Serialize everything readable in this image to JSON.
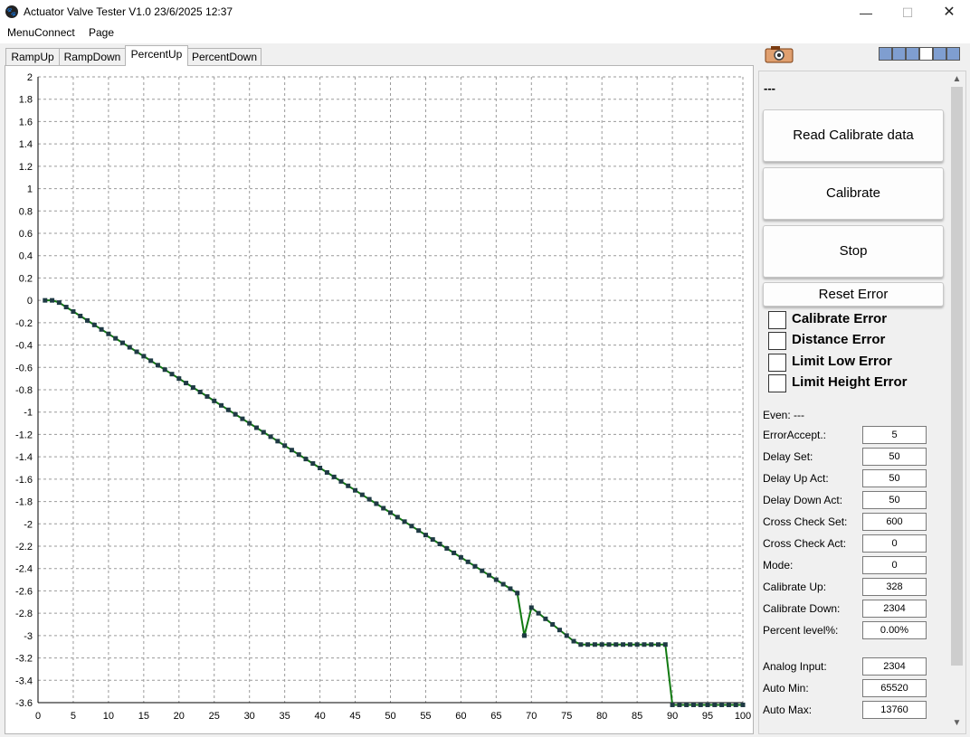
{
  "window": {
    "title": "Actuator Valve Tester V1.0 23/6/2025 12:37",
    "controls": {
      "minimize": "—",
      "maximize": "☐",
      "close": "✕"
    }
  },
  "menu": [
    "MenuConnect",
    "Page"
  ],
  "tabs": [
    {
      "label": "RampUp",
      "active": false
    },
    {
      "label": "RampDown",
      "active": false
    },
    {
      "label": "PercentUp",
      "active": true
    },
    {
      "label": "PercentDown",
      "active": false
    }
  ],
  "indicators": [
    "blue",
    "blue",
    "blue",
    "white",
    "blue",
    "blue"
  ],
  "status_text": "---",
  "buttons": {
    "read_calibrate": "Read Calibrate data",
    "calibrate": "Calibrate",
    "stop": "Stop",
    "reset_error": "Reset Error"
  },
  "errors": [
    {
      "label": "Calibrate Error",
      "checked": false
    },
    {
      "label": "Distance Error",
      "checked": false
    },
    {
      "label": "Limit Low Error",
      "checked": false
    },
    {
      "label": "Limit Height Error",
      "checked": false
    }
  ],
  "even": "Even: ---",
  "fields": [
    {
      "label": "ErrorAccept.:",
      "value": "5"
    },
    {
      "label": "Delay Set:",
      "value": "50"
    },
    {
      "label": "Delay Up Act:",
      "value": "50"
    },
    {
      "label": "Delay Down Act:",
      "value": "50"
    },
    {
      "label": "Cross Check Set:",
      "value": "600"
    },
    {
      "label": "Cross Check Act:",
      "value": "0"
    },
    {
      "label": "Mode:",
      "value": "0"
    },
    {
      "label": "Calibrate Up:",
      "value": "328"
    },
    {
      "label": "Calibrate Down:",
      "value": "2304"
    },
    {
      "label": "Percent level%:",
      "value": "0.00%"
    },
    {
      "label": "Analog Input:",
      "value": "2304"
    },
    {
      "label": "Auto Min:",
      "value": "65520"
    },
    {
      "label": "Auto Max:",
      "value": "13760"
    }
  ],
  "colors": {
    "line": "#117a11",
    "marker": "#1f3a44",
    "grid": "#9a9a9a",
    "indicator_blue": "#7f9ed0"
  },
  "chart_data": {
    "type": "line",
    "xlim": [
      0,
      100
    ],
    "ylim": [
      -3.6,
      2
    ],
    "x_ticks": [
      0,
      5,
      10,
      15,
      20,
      25,
      30,
      35,
      40,
      45,
      50,
      55,
      60,
      65,
      70,
      75,
      80,
      85,
      90,
      95,
      100
    ],
    "y_ticks": [
      2,
      1.8,
      1.6,
      1.4,
      1.2,
      1,
      0.8,
      0.6,
      0.4,
      0.2,
      0,
      -0.2,
      -0.4,
      -0.6,
      -0.8,
      -1,
      -1.2,
      -1.4,
      -1.6,
      -1.8,
      -2,
      -2.2,
      -2.4,
      -2.6,
      -2.8,
      -3,
      -3.2,
      -3.4,
      -3.6
    ],
    "x": [
      1,
      2,
      3,
      4,
      5,
      6,
      7,
      8,
      9,
      10,
      11,
      12,
      13,
      14,
      15,
      16,
      17,
      18,
      19,
      20,
      21,
      22,
      23,
      24,
      25,
      26,
      27,
      28,
      29,
      30,
      31,
      32,
      33,
      34,
      35,
      36,
      37,
      38,
      39,
      40,
      41,
      42,
      43,
      44,
      45,
      46,
      47,
      48,
      49,
      50,
      51,
      52,
      53,
      54,
      55,
      56,
      57,
      58,
      59,
      60,
      61,
      62,
      63,
      64,
      65,
      66,
      67,
      68,
      69,
      70,
      71,
      72,
      73,
      74,
      75,
      76,
      77,
      78,
      79,
      80,
      81,
      82,
      83,
      84,
      85,
      86,
      87,
      88,
      89,
      90,
      91,
      92,
      93,
      94,
      95,
      96,
      97,
      98,
      99,
      100
    ],
    "y": [
      0,
      0,
      -0.02,
      -0.06,
      -0.1,
      -0.14,
      -0.18,
      -0.22,
      -0.26,
      -0.3,
      -0.34,
      -0.38,
      -0.42,
      -0.46,
      -0.5,
      -0.54,
      -0.58,
      -0.62,
      -0.66,
      -0.7,
      -0.74,
      -0.78,
      -0.82,
      -0.86,
      -0.9,
      -0.94,
      -0.98,
      -1.02,
      -1.06,
      -1.1,
      -1.14,
      -1.18,
      -1.22,
      -1.26,
      -1.3,
      -1.34,
      -1.38,
      -1.42,
      -1.46,
      -1.5,
      -1.54,
      -1.58,
      -1.62,
      -1.66,
      -1.7,
      -1.74,
      -1.78,
      -1.82,
      -1.86,
      -1.9,
      -1.94,
      -1.98,
      -2.02,
      -2.06,
      -2.1,
      -2.14,
      -2.18,
      -2.22,
      -2.26,
      -2.3,
      -2.34,
      -2.38,
      -2.42,
      -2.46,
      -2.5,
      -2.54,
      -2.58,
      -2.62,
      -3,
      -2.75,
      -2.8,
      -2.85,
      -2.9,
      -2.95,
      -3.0,
      -3.05,
      -3.08,
      -3.08,
      -3.08,
      -3.08,
      -3.08,
      -3.08,
      -3.08,
      -3.08,
      -3.08,
      -3.08,
      -3.08,
      -3.08,
      -3.08,
      -3.62,
      -3.62,
      -3.62,
      -3.62,
      -3.62,
      -3.62,
      -3.62,
      -3.62,
      -3.62,
      -3.62,
      -3.62
    ]
  }
}
